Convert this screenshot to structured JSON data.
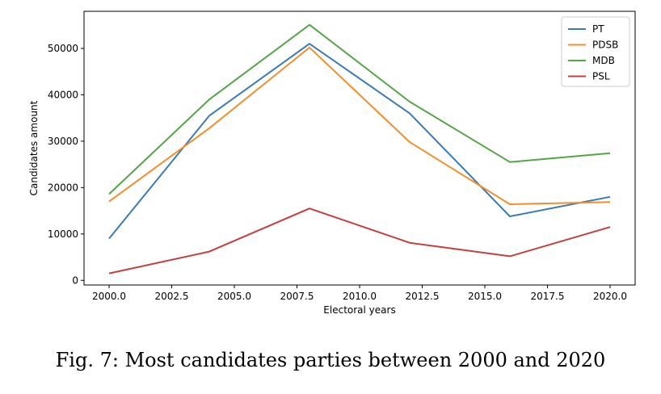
{
  "caption": "Fig. 7: Most candidates parties between 2000 and 2020",
  "chart_data": {
    "type": "line",
    "title": "",
    "xlabel": "Electoral years",
    "ylabel": "Candidates amount",
    "x": [
      2000,
      2004,
      2008,
      2012,
      2016,
      2020
    ],
    "xlim": [
      1999.0,
      2021.0
    ],
    "ylim": [
      -1000,
      58000
    ],
    "xticks": [
      2000.0,
      2002.5,
      2005.0,
      2007.5,
      2010.0,
      2012.5,
      2015.0,
      2017.5,
      2020.0
    ],
    "xtick_labels": [
      "2000.0",
      "2002.5",
      "2005.0",
      "2007.5",
      "2010.0",
      "2012.5",
      "2015.0",
      "2017.5",
      "2020.0"
    ],
    "yticks": [
      0,
      10000,
      20000,
      30000,
      40000,
      50000
    ],
    "ytick_labels": [
      "0",
      "10000",
      "20000",
      "30000",
      "40000",
      "50000"
    ],
    "grid": false,
    "legend_position": "top-right",
    "series": [
      {
        "name": "PT",
        "color": "#3a7bb4",
        "values": [
          9000,
          35500,
          51000,
          36000,
          13800,
          18000
        ]
      },
      {
        "name": "PDSB",
        "color": "#f28e2b",
        "values": [
          17000,
          32800,
          50200,
          29800,
          16400,
          16900
        ]
      },
      {
        "name": "MDB",
        "color": "#55a447",
        "values": [
          18600,
          39000,
          55100,
          38500,
          25500,
          27400
        ]
      },
      {
        "name": "PSL",
        "color": "#c5403c",
        "values": [
          1500,
          6200,
          15500,
          8100,
          5200,
          11500
        ]
      }
    ]
  }
}
